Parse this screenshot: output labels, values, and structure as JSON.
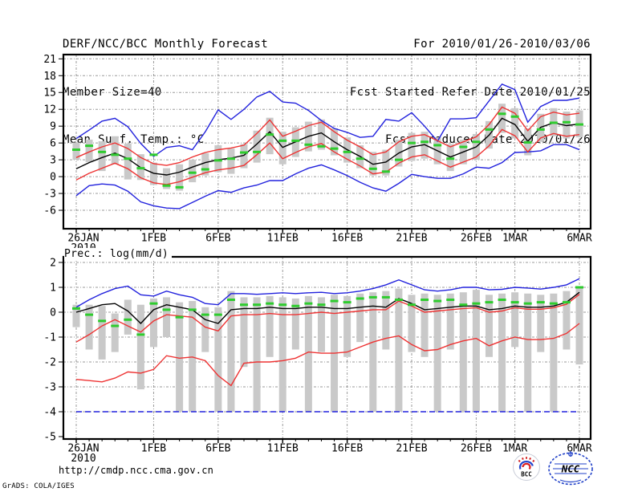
{
  "header": {
    "left_line1": "DERF/NCC/BCC Monthly Forecast",
    "left_line2": "Member Size=40",
    "left_line3": "Mean Surf. Temp.: °C",
    "right_line1": "For 2010/01/26-2010/03/06",
    "right_line2": "Fcst Started Refer Date 2010/01/25",
    "right_line3": "Fcst Produced Date 2010/01/26"
  },
  "prec_title": "Prec.: log(mm/d)",
  "footer": {
    "url": "http://cmdp.ncc.cma.gov.cn",
    "credit": "GrADS: COLA/IGES",
    "bcc_label": "BCC",
    "ncc_label": "NCC"
  },
  "colors": {
    "envelope_blue": "#2222dd",
    "sigma_red": "#ee3333",
    "mean_black": "#000000",
    "climo_green": "#2ecc2e",
    "spread_bar_gray": "#c9c9c9",
    "grid_gray": "#9a9a9a"
  },
  "chart_data": [
    {
      "type": "line",
      "title": "Mean Surf. Temp.: °C",
      "ylabel": "°C",
      "ylim": [
        -9.3,
        21.8
      ],
      "grid": true,
      "yticks": [
        21,
        18,
        15,
        12,
        9,
        6,
        3,
        0,
        -3,
        -6
      ],
      "x_axis": {
        "n_days": 40,
        "start": "26JAN2010",
        "end": "6MAR2010",
        "tick_days": [
          0,
          6,
          11,
          16,
          21,
          26,
          31,
          34,
          39
        ],
        "tick_labels": [
          "26JAN",
          "1FEB",
          "6FEB",
          "11FEB",
          "16FEB",
          "21FEB",
          "26FEB",
          "1MAR",
          "6MAR"
        ],
        "year_sublabel": "2010"
      },
      "series": [
        {
          "name": "ensemble-max",
          "color": "blue",
          "values": [
            6.8,
            8.3,
            9.9,
            10.4,
            8.9,
            5.9,
            3.6,
            5.2,
            5.5,
            4.8,
            8.0,
            11.9,
            10.2,
            12.0,
            14.2,
            15.2,
            13.3,
            13.1,
            11.8,
            10.0,
            8.6,
            7.9,
            7.0,
            7.2,
            10.2,
            9.9,
            11.4,
            9.0,
            6.3,
            10.3,
            10.3,
            10.5,
            13.5,
            16.5,
            15.5,
            9.7,
            12.5,
            13.6,
            13.6,
            14.0
          ]
        },
        {
          "name": "ensemble-min",
          "color": "blue",
          "values": [
            -3.4,
            -1.6,
            -1.3,
            -1.5,
            -2.6,
            -4.5,
            -5.2,
            -5.6,
            -5.7,
            -4.6,
            -3.5,
            -2.5,
            -2.8,
            -2.0,
            -1.5,
            -0.7,
            -0.7,
            0.5,
            1.5,
            2.1,
            1.2,
            0.2,
            -1.0,
            -2.0,
            -2.6,
            -1.2,
            0.4,
            0.0,
            -0.3,
            -0.3,
            0.5,
            1.7,
            1.5,
            2.5,
            4.3,
            4.4,
            4.6,
            5.7,
            5.7,
            4.8
          ]
        },
        {
          "name": "mean-plus-sd",
          "color": "red",
          "values": [
            3.4,
            4.4,
            5.3,
            6.0,
            5.0,
            3.4,
            2.3,
            2.0,
            2.5,
            3.5,
            4.3,
            4.8,
            5.1,
            5.6,
            7.7,
            10.1,
            7.2,
            8.1,
            9.1,
            9.7,
            8.0,
            6.5,
            5.3,
            3.9,
            4.4,
            6.2,
            7.2,
            7.5,
            6.4,
            5.3,
            6.2,
            7.1,
            9.3,
            12.4,
            11.3,
            8.2,
            10.7,
            11.5,
            11.0,
            11.3
          ]
        },
        {
          "name": "mean-minus-sd",
          "color": "red",
          "values": [
            -0.6,
            0.6,
            1.5,
            2.4,
            1.4,
            -0.2,
            -1.1,
            -1.4,
            -0.9,
            -0.1,
            0.7,
            1.2,
            1.5,
            2.0,
            3.9,
            6.0,
            3.2,
            4.3,
            5.3,
            5.9,
            4.4,
            3.1,
            1.9,
            0.5,
            0.8,
            2.4,
            3.5,
            3.9,
            2.8,
            1.7,
            2.6,
            3.5,
            5.5,
            8.4,
            7.3,
            4.4,
            6.9,
            7.7,
            7.2,
            7.5
          ]
        },
        {
          "name": "ensemble-mean",
          "color": "black",
          "values": [
            1.4,
            2.5,
            3.4,
            4.2,
            3.2,
            1.6,
            0.6,
            0.3,
            0.8,
            1.7,
            2.5,
            3.0,
            3.3,
            3.8,
            5.8,
            8.0,
            5.2,
            6.2,
            7.2,
            7.8,
            6.2,
            4.8,
            3.6,
            2.2,
            2.6,
            4.2,
            5.3,
            5.7,
            4.6,
            3.5,
            4.4,
            5.3,
            7.4,
            10.4,
            9.3,
            6.3,
            8.8,
            9.6,
            9.1,
            9.4
          ]
        },
        {
          "name": "climatology-marker",
          "color": "green",
          "style": "marker",
          "values": [
            4.8,
            5.5,
            4.4,
            3.9,
            3.2,
            1.5,
            3.9,
            -1.6,
            -1.9,
            0.7,
            1.3,
            2.9,
            3.2,
            4.3,
            4.4,
            7.5,
            6.4,
            6.4,
            5.7,
            5.4,
            5.0,
            4.4,
            3.2,
            1.4,
            0.9,
            3.0,
            6.0,
            6.2,
            5.6,
            3.2,
            5.3,
            6.2,
            8.4,
            11.2,
            10.7,
            6.1,
            8.4,
            9.6,
            9.7,
            9.3
          ]
        }
      ],
      "bars": {
        "name": "member-spread",
        "high": [
          6.1,
          6.6,
          6.3,
          7.2,
          5.9,
          4.0,
          2.5,
          1.5,
          2.2,
          3.0,
          4.2,
          5.6,
          5.0,
          5.8,
          8.2,
          10.5,
          8.0,
          8.8,
          9.8,
          10.2,
          8.6,
          7.0,
          5.6,
          4.4,
          4.8,
          6.6,
          7.8,
          8.0,
          7.0,
          5.8,
          6.6,
          7.6,
          9.9,
          13.0,
          12.2,
          8.6,
          11.2,
          12.2,
          11.6,
          11.8
        ],
        "low": [
          3.0,
          2.6,
          1.0,
          2.2,
          -0.5,
          -0.6,
          -1.5,
          -2.2,
          -2.5,
          -1.0,
          0.2,
          0.8,
          0.5,
          1.5,
          2.5,
          4.0,
          2.2,
          3.5,
          4.5,
          4.8,
          3.8,
          2.5,
          1.5,
          0.2,
          0.2,
          1.8,
          2.8,
          3.2,
          2.2,
          1.0,
          2.2,
          3.0,
          5.0,
          7.8,
          6.8,
          3.8,
          6.2,
          7.2,
          6.8,
          7.0
        ]
      }
    },
    {
      "type": "line",
      "title": "Prec.: log(mm/d)",
      "ylabel": "log(mm/d)",
      "ylim": [
        -5.1,
        2.2
      ],
      "grid": true,
      "yticks": [
        2,
        1,
        0,
        -1,
        -2,
        -3,
        -4,
        -5
      ],
      "x_axis": {
        "n_days": 40,
        "start": "26JAN2010",
        "end": "6MAR2010",
        "tick_days": [
          0,
          6,
          11,
          16,
          21,
          26,
          31,
          34,
          39
        ],
        "tick_labels": [
          "26JAN",
          "1FEB",
          "6FEB",
          "11FEB",
          "16FEB",
          "21FEB",
          "26FEB",
          "1MAR",
          "6MAR"
        ],
        "year_sublabel": "2010"
      },
      "series": [
        {
          "name": "ensemble-max",
          "color": "blue",
          "values": [
            0.2,
            0.5,
            0.75,
            0.95,
            1.05,
            0.7,
            0.65,
            0.85,
            0.7,
            0.6,
            0.35,
            0.3,
            0.75,
            0.75,
            0.72,
            0.75,
            0.78,
            0.75,
            0.78,
            0.8,
            0.75,
            0.78,
            0.85,
            0.95,
            1.1,
            1.3,
            1.1,
            0.9,
            0.85,
            0.9,
            1.0,
            1.0,
            0.9,
            0.92,
            1.0,
            0.97,
            0.93,
            1.0,
            1.1,
            1.35
          ]
        },
        {
          "name": "ensemble-min",
          "color": "blue",
          "dashed": true,
          "values": [
            -4,
            -4,
            -4,
            -4,
            -4,
            -4,
            -4,
            -4,
            -4,
            -4,
            -4,
            -4,
            -4,
            -4,
            -4,
            -4,
            -4,
            -4,
            -4,
            -4,
            -4,
            -4,
            -4,
            -4,
            -4,
            -4,
            -4,
            -4,
            -4,
            -4,
            -4,
            -4,
            -4,
            -4,
            -4,
            -4,
            -4,
            -4,
            -4,
            -4
          ]
        },
        {
          "name": "mean-plus-sd",
          "color": "red",
          "values": [
            -1.2,
            -0.9,
            -0.55,
            -0.3,
            -0.55,
            -0.8,
            -0.35,
            -0.1,
            -0.15,
            -0.2,
            -0.6,
            -0.75,
            -0.15,
            -0.1,
            -0.1,
            -0.05,
            -0.1,
            -0.1,
            -0.05,
            0.0,
            -0.05,
            0.0,
            0.05,
            0.1,
            0.1,
            0.45,
            0.25,
            0.0,
            0.05,
            0.1,
            0.15,
            0.18,
            0.0,
            0.05,
            0.18,
            0.12,
            0.12,
            0.18,
            0.32,
            0.72
          ]
        },
        {
          "name": "mean-minus-sd",
          "color": "red",
          "values": [
            -2.7,
            -2.75,
            -2.8,
            -2.65,
            -2.4,
            -2.45,
            -2.3,
            -1.75,
            -1.85,
            -1.8,
            -1.95,
            -2.55,
            -2.95,
            -2.05,
            -2.0,
            -2.0,
            -1.95,
            -1.85,
            -1.6,
            -1.65,
            -1.65,
            -1.6,
            -1.4,
            -1.2,
            -1.05,
            -0.95,
            -1.3,
            -1.55,
            -1.5,
            -1.3,
            -1.15,
            -1.05,
            -1.35,
            -1.15,
            -1.0,
            -1.1,
            -1.1,
            -1.05,
            -0.85,
            -0.45
          ]
        },
        {
          "name": "ensemble-mean",
          "color": "black",
          "values": [
            0.0,
            0.15,
            0.3,
            0.35,
            0.05,
            -0.45,
            0.1,
            0.3,
            0.2,
            0.1,
            -0.3,
            -0.45,
            0.1,
            0.15,
            0.15,
            0.2,
            0.15,
            0.15,
            0.2,
            0.2,
            0.15,
            0.15,
            0.2,
            0.25,
            0.2,
            0.55,
            0.35,
            0.1,
            0.15,
            0.2,
            0.25,
            0.25,
            0.1,
            0.15,
            0.25,
            0.2,
            0.2,
            0.25,
            0.4,
            0.8
          ]
        },
        {
          "name": "climatology-marker",
          "color": "green",
          "style": "marker",
          "values": [
            0.15,
            -0.1,
            -0.35,
            -0.55,
            -0.3,
            -0.9,
            0.35,
            0.1,
            -0.2,
            0.1,
            -0.1,
            -0.1,
            0.5,
            0.3,
            0.3,
            0.35,
            0.3,
            0.25,
            0.35,
            0.3,
            0.45,
            0.4,
            0.55,
            0.6,
            0.6,
            0.5,
            0.3,
            0.5,
            0.45,
            0.5,
            0.3,
            0.35,
            0.4,
            0.5,
            0.4,
            0.35,
            0.4,
            0.35,
            0.4,
            1.0
          ]
        }
      ],
      "bars": {
        "name": "member-spread",
        "high": [
          0.3,
          0.3,
          0.25,
          -0.05,
          0.5,
          0.3,
          0.55,
          0.6,
          0.4,
          0.45,
          0.2,
          0.2,
          0.85,
          0.6,
          0.6,
          0.65,
          0.6,
          0.55,
          0.65,
          0.6,
          0.7,
          0.65,
          0.75,
          0.8,
          0.85,
          0.95,
          0.7,
          0.75,
          0.7,
          0.75,
          0.8,
          0.9,
          0.7,
          0.75,
          0.8,
          0.75,
          0.7,
          0.75,
          0.85,
          1.05
        ],
        "low": [
          -0.6,
          -1.5,
          -1.9,
          -1.6,
          -0.9,
          -3.1,
          -1.4,
          -1.0,
          -4.0,
          -4.0,
          -1.6,
          -4.0,
          -4.0,
          -2.2,
          -4.0,
          -1.8,
          -4.0,
          -1.5,
          -4.0,
          -1.6,
          -4.0,
          -1.8,
          -1.2,
          -4.0,
          -1.5,
          -4.0,
          -1.6,
          -1.8,
          -4.0,
          -1.5,
          -4.0,
          -4.0,
          -1.8,
          -4.0,
          -1.4,
          -4.0,
          -1.6,
          -4.0,
          -1.5,
          -2.1
        ]
      }
    }
  ]
}
